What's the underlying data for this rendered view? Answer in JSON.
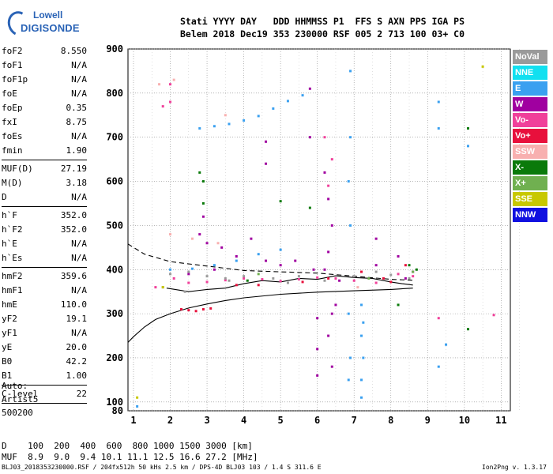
{
  "logo": {
    "line1": "Lowell",
    "line2": "DIGISONDE"
  },
  "header": {
    "row1": "Stati YYYY DAY   DDD HHMMSS P1  FFS S AXN PPS IGA PS",
    "row2": "Belem 2018 Dec19 353 230000 RSF 005 2 713 100 03+ C0"
  },
  "params": [
    {
      "name": "foF2",
      "value": "8.550"
    },
    {
      "name": "foF1",
      "value": "N/A"
    },
    {
      "name": "foF1p",
      "value": "N/A"
    },
    {
      "name": "foE",
      "value": "N/A"
    },
    {
      "name": "foEp",
      "value": "0.35"
    },
    {
      "name": "fxI",
      "value": "8.75"
    },
    {
      "name": "foEs",
      "value": "N/A"
    },
    {
      "name": "fmin",
      "value": "1.90"
    },
    {
      "sep": true
    },
    {
      "name": "MUF(D)",
      "value": "27.19"
    },
    {
      "name": "M(D)",
      "value": "3.18"
    },
    {
      "name": "D",
      "value": "N/A"
    },
    {
      "sep": true
    },
    {
      "name": "h`F",
      "value": "352.0"
    },
    {
      "name": "h`F2",
      "value": "352.0"
    },
    {
      "name": "h`E",
      "value": "N/A"
    },
    {
      "name": "h`Es",
      "value": "N/A"
    },
    {
      "sep": true
    },
    {
      "name": "hmF2",
      "value": "359.6"
    },
    {
      "name": "hmF1",
      "value": "N/A"
    },
    {
      "name": "hmE",
      "value": "110.0"
    },
    {
      "name": "yF2",
      "value": "19.1"
    },
    {
      "name": "yF1",
      "value": "N/A"
    },
    {
      "name": "yE",
      "value": "20.0"
    },
    {
      "name": "B0",
      "value": "42.2"
    },
    {
      "name": "B1",
      "value": "1.00"
    },
    {
      "sep": true
    },
    {
      "name": "C-level",
      "value": "22"
    },
    {
      "sep": true
    }
  ],
  "auto": {
    "line1": "Auto:",
    "line2": "Artist5",
    "line3": "500200"
  },
  "legend": [
    {
      "label": "NoVal",
      "color": "#9a9a9a"
    },
    {
      "label": "NNE",
      "color": "#12e0f0"
    },
    {
      "label": "E",
      "color": "#3aa0f0"
    },
    {
      "label": "W",
      "color": "#a000a0"
    },
    {
      "label": "Vo-",
      "color": "#f0409a"
    },
    {
      "label": "Vo+",
      "color": "#e8103c"
    },
    {
      "label": "SSW",
      "color": "#f8b0b0"
    },
    {
      "label": "X-",
      "color": "#0a7a0a"
    },
    {
      "label": "X+",
      "color": "#70b050"
    },
    {
      "label": "SSE",
      "color": "#c8c800"
    },
    {
      "label": "NNW",
      "color": "#1010e0"
    }
  ],
  "bottom": {
    "d_row": "D    100  200  400  600  800 1000 1500 3000 [km]",
    "muf_row": "MUF  8.9  9.0  9.4 10.1 11.1 12.5 16.6 27.2 [MHz]"
  },
  "footer": {
    "left": "BLJ03_2018353230000.RSF / 204fx512h 50 kHs 2.5 km / DPS-4D BLJ03 103 / 1.4 S 311.6 E",
    "right": "Ion2Png v. 1.3.17"
  },
  "chart_data": {
    "type": "scatter",
    "title": "",
    "xlabel": "",
    "ylabel": "",
    "xlim": [
      0.85,
      11.25
    ],
    "ylim": [
      80,
      900
    ],
    "x_ticks": [
      "1",
      "2",
      "3",
      "4",
      "5",
      "6",
      "7",
      "8",
      "9",
      "10",
      "11"
    ],
    "y_ticks": [
      "80",
      "100",
      "200",
      "300",
      "400",
      "500",
      "600",
      "700",
      "800",
      "900"
    ],
    "grid": true,
    "series": [
      {
        "name": "E",
        "color": "#3aa0f0",
        "points": [
          [
            2.8,
            720
          ],
          [
            3.2,
            725
          ],
          [
            3.6,
            730
          ],
          [
            4.0,
            738
          ],
          [
            4.4,
            748
          ],
          [
            4.8,
            765
          ],
          [
            5.2,
            782
          ],
          [
            5.6,
            795
          ],
          [
            2.0,
            400
          ],
          [
            2.6,
            402
          ],
          [
            3.2,
            410
          ],
          [
            3.8,
            420
          ],
          [
            4.4,
            435
          ],
          [
            5.0,
            445
          ],
          [
            6.9,
            850
          ],
          [
            6.9,
            700
          ],
          [
            6.85,
            600
          ],
          [
            6.9,
            500
          ],
          [
            6.85,
            300
          ],
          [
            6.9,
            200
          ],
          [
            6.85,
            150
          ],
          [
            7.2,
            320
          ],
          [
            7.25,
            280
          ],
          [
            7.2,
            250
          ],
          [
            7.25,
            200
          ],
          [
            7.2,
            150
          ],
          [
            7.2,
            110
          ],
          [
            1.1,
            90
          ],
          [
            9.3,
            780
          ],
          [
            9.3,
            720
          ],
          [
            9.5,
            230
          ],
          [
            9.3,
            180
          ],
          [
            10.1,
            680
          ]
        ]
      },
      {
        "name": "W",
        "color": "#a000a0",
        "points": [
          [
            2.8,
            480
          ],
          [
            2.9,
            520
          ],
          [
            3.0,
            460
          ],
          [
            3.4,
            450
          ],
          [
            3.8,
            430
          ],
          [
            4.2,
            470
          ],
          [
            4.6,
            420
          ],
          [
            5.0,
            410
          ],
          [
            5.4,
            420
          ],
          [
            5.9,
            400
          ],
          [
            6.2,
            620
          ],
          [
            6.3,
            560
          ],
          [
            6.4,
            500
          ],
          [
            6.3,
            440
          ],
          [
            6.4,
            300
          ],
          [
            6.3,
            250
          ],
          [
            6.4,
            180
          ],
          [
            6.0,
            290
          ],
          [
            6.0,
            220
          ],
          [
            6.0,
            160
          ],
          [
            6.5,
            320
          ],
          [
            6.2,
            400
          ],
          [
            7.6,
            470
          ],
          [
            7.6,
            410
          ],
          [
            8.2,
            430
          ],
          [
            8.6,
            395
          ],
          [
            2.5,
            390
          ],
          [
            3.2,
            400
          ],
          [
            4.6,
            690
          ],
          [
            4.6,
            640
          ],
          [
            5.8,
            810
          ],
          [
            5.8,
            700
          ],
          [
            6.6,
            375
          ],
          [
            8.4,
            380
          ]
        ]
      },
      {
        "name": "Vo-",
        "color": "#f0409a",
        "points": [
          [
            2.1,
            380
          ],
          [
            2.5,
            370
          ],
          [
            3.0,
            372
          ],
          [
            3.5,
            376
          ],
          [
            4.0,
            380
          ],
          [
            4.5,
            378
          ],
          [
            5.0,
            374
          ],
          [
            5.5,
            378
          ],
          [
            6.0,
            382
          ],
          [
            6.5,
            380
          ],
          [
            7.0,
            375
          ],
          [
            7.6,
            370
          ],
          [
            8.2,
            390
          ],
          [
            8.6,
            385
          ],
          [
            6.2,
            700
          ],
          [
            6.4,
            650
          ],
          [
            6.3,
            590
          ],
          [
            2.0,
            820
          ],
          [
            2.0,
            780
          ],
          [
            1.8,
            770
          ],
          [
            9.3,
            290
          ],
          [
            10.8,
            297
          ],
          [
            1.6,
            360
          ]
        ]
      },
      {
        "name": "Vo+",
        "color": "#e8103c",
        "points": [
          [
            2.3,
            310
          ],
          [
            2.5,
            308
          ],
          [
            2.7,
            306
          ],
          [
            2.9,
            310
          ],
          [
            3.1,
            312
          ],
          [
            4.4,
            365
          ],
          [
            6.3,
            380
          ],
          [
            7.8,
            380
          ],
          [
            8.0,
            372
          ],
          [
            8.4,
            410
          ],
          [
            7.2,
            395
          ],
          [
            3.8,
            365
          ],
          [
            5.6,
            372
          ]
        ]
      },
      {
        "name": "X-",
        "color": "#0a7a0a",
        "points": [
          [
            2.8,
            620
          ],
          [
            2.9,
            600
          ],
          [
            5.0,
            555
          ],
          [
            5.8,
            540
          ],
          [
            8.2,
            320
          ],
          [
            8.5,
            410
          ],
          [
            8.7,
            400
          ],
          [
            4.1,
            375
          ],
          [
            10.1,
            720
          ],
          [
            10.1,
            265
          ],
          [
            2.9,
            550
          ]
        ]
      },
      {
        "name": "NoVal",
        "color": "#9a9a9a",
        "points": [
          [
            2.0,
            390
          ],
          [
            2.5,
            395
          ],
          [
            3.0,
            385
          ],
          [
            3.5,
            380
          ],
          [
            4.0,
            385
          ],
          [
            4.8,
            380
          ],
          [
            5.5,
            385
          ],
          [
            6.2,
            375
          ],
          [
            7.0,
            385
          ],
          [
            7.6,
            395
          ],
          [
            8.0,
            388
          ],
          [
            8.5,
            380
          ],
          [
            1.8,
            360
          ],
          [
            2.4,
            350
          ],
          [
            3.6,
            375
          ],
          [
            5.2,
            370
          ]
        ]
      },
      {
        "name": "SSW",
        "color": "#f8b0b0",
        "points": [
          [
            2.0,
            480
          ],
          [
            2.6,
            470
          ],
          [
            3.3,
            460
          ],
          [
            1.7,
            820
          ],
          [
            2.1,
            830
          ],
          [
            3.5,
            750
          ],
          [
            7.1,
            360
          ]
        ]
      },
      {
        "name": "X+",
        "color": "#70b050",
        "points": [
          [
            4.4,
            390
          ],
          [
            7.4,
            380
          ],
          [
            8.6,
            395
          ]
        ]
      },
      {
        "name": "SSE",
        "color": "#c8c800",
        "points": [
          [
            1.1,
            110
          ],
          [
            10.5,
            860
          ],
          [
            1.8,
            360
          ]
        ]
      }
    ],
    "curves": [
      {
        "name": "profile",
        "style": "solid",
        "points": [
          [
            0.85,
            235
          ],
          [
            1.0,
            248
          ],
          [
            1.3,
            270
          ],
          [
            1.6,
            287
          ],
          [
            2.0,
            300
          ],
          [
            2.5,
            313
          ],
          [
            3.0,
            322
          ],
          [
            3.5,
            330
          ],
          [
            4.0,
            336
          ],
          [
            5.0,
            344
          ],
          [
            6.0,
            349
          ],
          [
            7.0,
            352
          ],
          [
            8.0,
            355
          ],
          [
            8.6,
            358
          ]
        ]
      },
      {
        "name": "trace",
        "style": "solid",
        "points": [
          [
            1.9,
            358
          ],
          [
            2.5,
            350
          ],
          [
            3.0,
            355
          ],
          [
            3.5,
            358
          ],
          [
            4.0,
            368
          ],
          [
            4.5,
            375
          ],
          [
            5.0,
            372
          ],
          [
            5.5,
            380
          ],
          [
            6.0,
            378
          ],
          [
            6.5,
            386
          ],
          [
            7.0,
            382
          ],
          [
            7.5,
            380
          ],
          [
            8.0,
            372
          ],
          [
            8.3,
            368
          ],
          [
            8.6,
            365
          ]
        ]
      },
      {
        "name": "dashed",
        "style": "dashed",
        "points": [
          [
            0.85,
            458
          ],
          [
            1.3,
            435
          ],
          [
            2.0,
            418
          ],
          [
            3.0,
            408
          ],
          [
            4.0,
            398
          ],
          [
            5.0,
            395
          ],
          [
            6.0,
            392
          ],
          [
            7.0,
            385
          ],
          [
            8.0,
            378
          ],
          [
            8.6,
            376
          ]
        ]
      }
    ]
  }
}
